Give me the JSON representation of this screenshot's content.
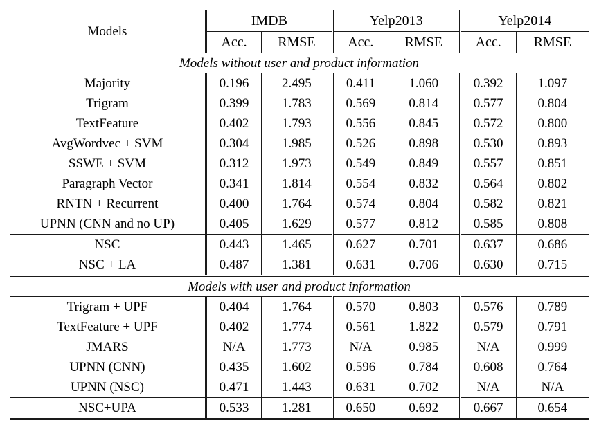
{
  "table": {
    "models_header": "Models",
    "column_groups": [
      {
        "label": "IMDB",
        "columns": [
          "Acc.",
          "RMSE"
        ]
      },
      {
        "label": "Yelp2013",
        "columns": [
          "Acc.",
          "RMSE"
        ]
      },
      {
        "label": "Yelp2014",
        "columns": [
          "Acc.",
          "RMSE"
        ]
      }
    ],
    "sections": [
      {
        "title": "Models without user and product information",
        "row_groups": [
          {
            "rows": [
              {
                "model": "Majority",
                "bold_model": 0,
                "values": [
                  "0.196",
                  "2.495",
                  "0.411",
                  "1.060",
                  "0.392",
                  "1.097"
                ],
                "bold": [
                  0,
                  0,
                  0,
                  0,
                  0,
                  0
                ]
              },
              {
                "model": "Trigram",
                "bold_model": 0,
                "values": [
                  "0.399",
                  "1.783",
                  "0.569",
                  "0.814",
                  "0.577",
                  "0.804"
                ],
                "bold": [
                  0,
                  0,
                  0,
                  0,
                  0,
                  0
                ]
              },
              {
                "model": "TextFeature",
                "bold_model": 0,
                "values": [
                  "0.402",
                  "1.793",
                  "0.556",
                  "0.845",
                  "0.572",
                  "0.800"
                ],
                "bold": [
                  0,
                  0,
                  0,
                  0,
                  0,
                  0
                ]
              },
              {
                "model": "AvgWordvec + SVM",
                "bold_model": 0,
                "values": [
                  "0.304",
                  "1.985",
                  "0.526",
                  "0.898",
                  "0.530",
                  "0.893"
                ],
                "bold": [
                  0,
                  0,
                  0,
                  0,
                  0,
                  0
                ]
              },
              {
                "model": "SSWE + SVM",
                "bold_model": 0,
                "values": [
                  "0.312",
                  "1.973",
                  "0.549",
                  "0.849",
                  "0.557",
                  "0.851"
                ],
                "bold": [
                  0,
                  0,
                  0,
                  0,
                  0,
                  0
                ]
              },
              {
                "model": "Paragraph Vector",
                "bold_model": 0,
                "values": [
                  "0.341",
                  "1.814",
                  "0.554",
                  "0.832",
                  "0.564",
                  "0.802"
                ],
                "bold": [
                  0,
                  0,
                  0,
                  0,
                  0,
                  0
                ]
              },
              {
                "model": "RNTN + Recurrent",
                "bold_model": 0,
                "values": [
                  "0.400",
                  "1.764",
                  "0.574",
                  "0.804",
                  "0.582",
                  "0.821"
                ],
                "bold": [
                  0,
                  0,
                  0,
                  0,
                  0,
                  0
                ]
              },
              {
                "model": "UPNN (CNN and no UP)",
                "bold_model": 0,
                "values": [
                  "0.405",
                  "1.629",
                  "0.577",
                  "0.812",
                  "0.585",
                  "0.808"
                ],
                "bold": [
                  0,
                  0,
                  0,
                  0,
                  0,
                  0
                ]
              }
            ]
          },
          {
            "rows": [
              {
                "model": "NSC",
                "bold_model": 1,
                "values": [
                  "0.443",
                  "1.465",
                  "0.627",
                  "0.701",
                  "0.637",
                  "0.686"
                ],
                "bold": [
                  0,
                  0,
                  0,
                  1,
                  1,
                  1
                ]
              },
              {
                "model": "NSC + LA",
                "bold_model": 1,
                "values": [
                  "0.487",
                  "1.381",
                  "0.631",
                  "0.706",
                  "0.630",
                  "0.715"
                ],
                "bold": [
                  1,
                  1,
                  1,
                  0,
                  0,
                  0
                ]
              }
            ]
          }
        ]
      },
      {
        "title": "Models with user and product information",
        "row_groups": [
          {
            "rows": [
              {
                "model": "Trigram + UPF",
                "bold_model": 0,
                "values": [
                  "0.404",
                  "1.764",
                  "0.570",
                  "0.803",
                  "0.576",
                  "0.789"
                ],
                "bold": [
                  0,
                  0,
                  0,
                  0,
                  0,
                  0
                ]
              },
              {
                "model": "TextFeature + UPF",
                "bold_model": 0,
                "values": [
                  "0.402",
                  "1.774",
                  "0.561",
                  "1.822",
                  "0.579",
                  "0.791"
                ],
                "bold": [
                  0,
                  0,
                  0,
                  0,
                  0,
                  0
                ]
              },
              {
                "model": "JMARS",
                "bold_model": 0,
                "values": [
                  "N/A",
                  "1.773",
                  "N/A",
                  "0.985",
                  "N/A",
                  "0.999"
                ],
                "bold": [
                  0,
                  0,
                  0,
                  0,
                  0,
                  0
                ]
              },
              {
                "model": "UPNN (CNN)",
                "bold_model": 0,
                "values": [
                  "0.435",
                  "1.602",
                  "0.596",
                  "0.784",
                  "0.608",
                  "0.764"
                ],
                "bold": [
                  0,
                  0,
                  0,
                  0,
                  0,
                  0
                ]
              },
              {
                "model": "UPNN (NSC)",
                "bold_model": 0,
                "values": [
                  "0.471",
                  "1.443",
                  "0.631",
                  "0.702",
                  "N/A",
                  "N/A"
                ],
                "bold": [
                  0,
                  0,
                  0,
                  0,
                  0,
                  0
                ]
              }
            ]
          },
          {
            "rows": [
              {
                "model": "NSC+UPA",
                "bold_model": 1,
                "values": [
                  "0.533",
                  "1.281",
                  "0.650",
                  "0.692",
                  "0.667",
                  "0.654"
                ],
                "bold": [
                  1,
                  1,
                  1,
                  1,
                  1,
                  1
                ]
              }
            ]
          }
        ]
      }
    ]
  }
}
